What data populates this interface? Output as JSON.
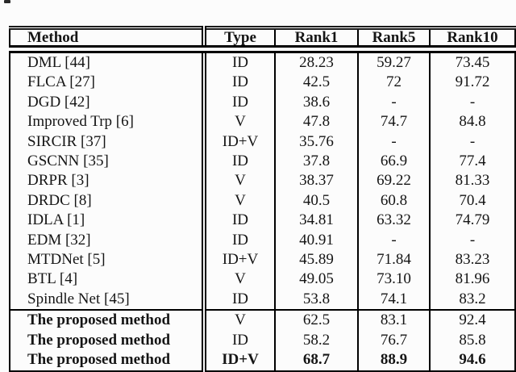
{
  "table": {
    "columns": [
      "Method",
      "Type",
      "Rank1",
      "Rank5",
      "Rank10"
    ],
    "rows": [
      {
        "method": "DML [44]",
        "type": "ID",
        "rank1": "28.23",
        "rank5": "59.27",
        "rank10": "73.45",
        "emphasis": "none",
        "separator_above": false
      },
      {
        "method": "FLCA [27]",
        "type": "ID",
        "rank1": "42.5",
        "rank5": "72",
        "rank10": "91.72",
        "emphasis": "none",
        "separator_above": false
      },
      {
        "method": "DGD [42]",
        "type": "ID",
        "rank1": "38.6",
        "rank5": "-",
        "rank10": "-",
        "emphasis": "none",
        "separator_above": false
      },
      {
        "method": "Improved Trp [6]",
        "type": "V",
        "rank1": "47.8",
        "rank5": "74.7",
        "rank10": "84.8",
        "emphasis": "none",
        "separator_above": false
      },
      {
        "method": "SIRCIR [37]",
        "type": "ID+V",
        "rank1": "35.76",
        "rank5": "-",
        "rank10": "-",
        "emphasis": "none",
        "separator_above": false
      },
      {
        "method": "GSCNN [35]",
        "type": "ID",
        "rank1": "37.8",
        "rank5": "66.9",
        "rank10": "77.4",
        "emphasis": "none",
        "separator_above": false
      },
      {
        "method": "DRPR [3]",
        "type": "V",
        "rank1": "38.37",
        "rank5": "69.22",
        "rank10": "81.33",
        "emphasis": "none",
        "separator_above": false
      },
      {
        "method": "DRDC [8]",
        "type": "V",
        "rank1": "40.5",
        "rank5": "60.8",
        "rank10": "70.4",
        "emphasis": "none",
        "separator_above": false
      },
      {
        "method": "IDLA [1]",
        "type": "ID",
        "rank1": "34.81",
        "rank5": "63.32",
        "rank10": "74.79",
        "emphasis": "none",
        "separator_above": false
      },
      {
        "method": "EDM [32]",
        "type": "ID",
        "rank1": "40.91",
        "rank5": "-",
        "rank10": "-",
        "emphasis": "none",
        "separator_above": false
      },
      {
        "method": "MTDNet [5]",
        "type": "ID+V",
        "rank1": "45.89",
        "rank5": "71.84",
        "rank10": "83.23",
        "emphasis": "none",
        "separator_above": false
      },
      {
        "method": "BTL [4]",
        "type": "V",
        "rank1": "49.05",
        "rank5": "73.10",
        "rank10": "81.96",
        "emphasis": "none",
        "separator_above": false
      },
      {
        "method": "Spindle Net [45]",
        "type": "ID",
        "rank1": "53.8",
        "rank5": "74.1",
        "rank10": "83.2",
        "emphasis": "none",
        "separator_above": false
      },
      {
        "method": "The proposed method",
        "type": "V",
        "rank1": "62.5",
        "rank5": "83.1",
        "rank10": "92.4",
        "emphasis": "method",
        "separator_above": true
      },
      {
        "method": "The proposed method",
        "type": "ID",
        "rank1": "58.2",
        "rank5": "76.7",
        "rank10": "85.8",
        "emphasis": "method",
        "separator_above": false
      },
      {
        "method": "The proposed method",
        "type": "ID+V",
        "rank1": "68.7",
        "rank5": "88.9",
        "rank10": "94.6",
        "emphasis": "all",
        "separator_above": false
      }
    ]
  },
  "colors": {
    "background": "#fcfcfc",
    "text": "#151515",
    "rule": "#000000"
  }
}
